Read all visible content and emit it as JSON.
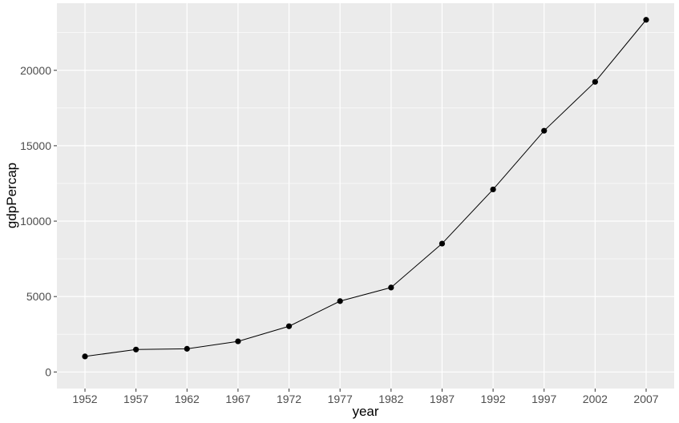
{
  "chart_data": {
    "type": "line",
    "xlabel": "year",
    "ylabel": "gdpPercap",
    "x": [
      1952,
      1957,
      1962,
      1967,
      1972,
      1977,
      1982,
      1987,
      1992,
      1997,
      2002,
      2007
    ],
    "values": [
      1030,
      1487,
      1536,
      2030,
      3031,
      4697,
      5598,
      8511,
      12104,
      15994,
      19234,
      23348
    ],
    "x_ticks": [
      "1952",
      "1957",
      "1962",
      "1967",
      "1972",
      "1977",
      "1982",
      "1987",
      "1992",
      "1997",
      "2002",
      "2007"
    ],
    "y_ticks": [
      0,
      5000,
      10000,
      15000,
      20000
    ],
    "y_tick_labels": [
      "0",
      "5000",
      "10000",
      "15000",
      "20000"
    ],
    "xlim": [
      1949.25,
      2009.75
    ],
    "ylim": [
      -1100,
      24450
    ],
    "grid": true,
    "colors": {
      "panel_background": "#ebebeb",
      "grid_major": "#ffffff",
      "line": "#000000",
      "points": "#000000"
    }
  }
}
